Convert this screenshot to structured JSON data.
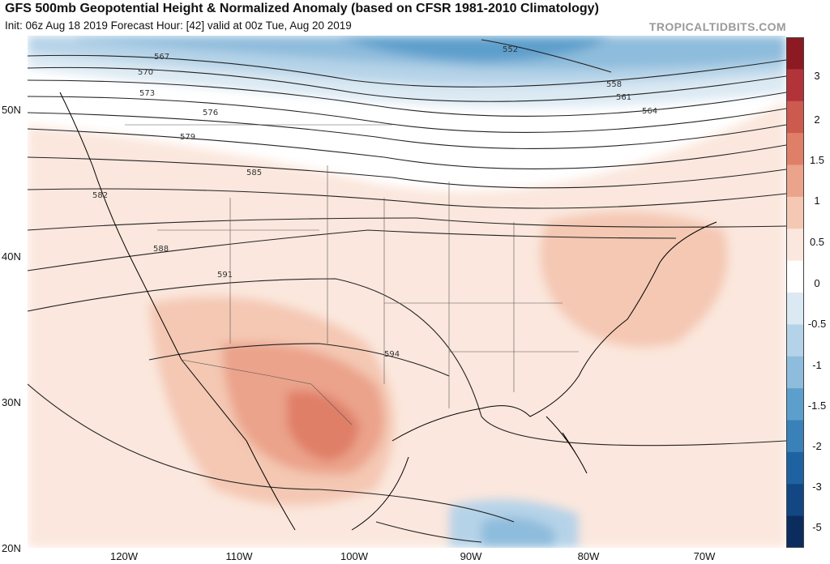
{
  "header": {
    "title": "GFS 500mb Geopotential Height & Normalized Anomaly (based on CFSR 1981-2010 Climatology)",
    "subtitle": "Init: 06z Aug 18 2019   Forecast Hour: [42]   valid at 00z Tue, Aug 20 2019",
    "brand": "TROPICALTIDBITS.COM"
  },
  "axes": {
    "lat_labels": [
      "50N",
      "40N",
      "30N",
      "20N"
    ],
    "lon_labels": [
      "120W",
      "110W",
      "100W",
      "90W",
      "80W",
      "70W"
    ]
  },
  "colorbar": {
    "labels": [
      "3",
      "2",
      "1.5",
      "1",
      "0.5",
      "0",
      "-0.5",
      "-1",
      "-1.5",
      "-2",
      "-3",
      "-5"
    ],
    "colors": [
      "#8b1a22",
      "#b2333a",
      "#cd5a4e",
      "#e07f68",
      "#eba38b",
      "#f4c8b3",
      "#fbe7dd",
      "#ffffff",
      "#dbe9f3",
      "#b5d3e8",
      "#8ebcdc",
      "#5d9fcc",
      "#3a80b9",
      "#1f62a2",
      "#134784",
      "#0b2c5e"
    ]
  },
  "contours": {
    "labels": [
      "552",
      "558",
      "561",
      "564",
      "567",
      "570",
      "573",
      "576",
      "579",
      "582",
      "585",
      "588",
      "591",
      "594"
    ]
  }
}
